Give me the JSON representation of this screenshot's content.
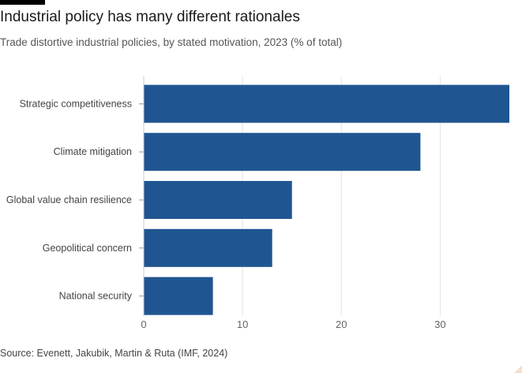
{
  "header": {
    "title": "Industrial policy has many different rationales",
    "subtitle": "Trade distortive industrial policies, by stated motivation, 2023 (% of total)"
  },
  "footer": {
    "source": "Source: Evenett, Jakubik, Martin & Ruta (IMF, 2024)"
  },
  "colors": {
    "bar": "#1f5591",
    "grid": "#e3e3e3",
    "tick_text": "#666666",
    "label_text": "#444444"
  },
  "chart_data": {
    "type": "bar",
    "orientation": "horizontal",
    "categories": [
      "Strategic competitiveness",
      "Climate mitigation",
      "Global value chain resilience",
      "Geopolitical concern",
      "National security"
    ],
    "values": [
      37,
      28,
      15,
      13,
      7
    ],
    "xlim": [
      0,
      37
    ],
    "xticks": [
      0,
      10,
      20,
      30
    ],
    "grid": "vertical"
  }
}
